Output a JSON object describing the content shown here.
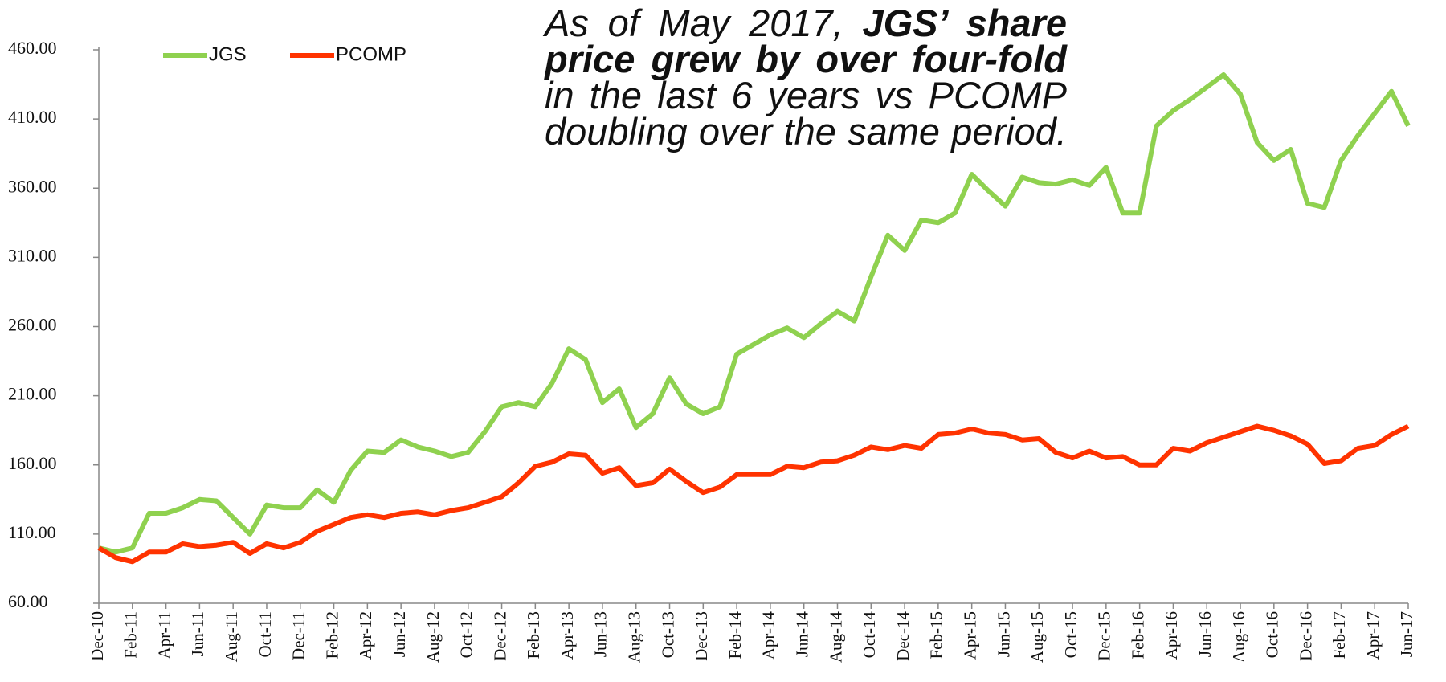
{
  "chart_data": {
    "type": "line",
    "annotation": [
      [
        {
          "text": "As of May 2017, ",
          "bold": false
        },
        {
          "text": "JGS’ share",
          "bold": true
        }
      ],
      [
        {
          "text": "price grew by over four-fold",
          "bold": true
        }
      ],
      [
        {
          "text": "in the last 6 years vs PCOMP",
          "bold": false
        }
      ],
      [
        {
          "text": "doubling over the same period.",
          "bold": false
        }
      ]
    ],
    "categories": [
      "Dec-10",
      null,
      "Feb-11",
      null,
      "Apr-11",
      null,
      "Jun-11",
      null,
      "Aug-11",
      null,
      "Oct-11",
      null,
      "Dec-11",
      null,
      "Feb-12",
      null,
      "Apr-12",
      null,
      "Jun-12",
      null,
      "Aug-12",
      null,
      "Oct-12",
      null,
      "Dec-12",
      null,
      "Feb-13",
      null,
      "Apr-13",
      null,
      "Jun-13",
      null,
      "Aug-13",
      null,
      "Oct-13",
      null,
      "Dec-13",
      null,
      "Feb-14",
      null,
      "Apr-14",
      null,
      "Jun-14",
      null,
      "Aug-14",
      null,
      "Oct-14",
      null,
      "Dec-14",
      null,
      "Feb-15",
      null,
      "Apr-15",
      null,
      "Jun-15",
      null,
      "Aug-15",
      null,
      "Oct-15",
      null,
      "Dec-15",
      null,
      "Feb-16",
      null,
      "Apr-16",
      null,
      "Jun-16",
      null,
      "Aug-16",
      null,
      "Oct-16",
      null,
      "Dec-16",
      null,
      "Feb-17",
      null,
      "Apr-17",
      null,
      "Jun-17"
    ],
    "series": [
      {
        "name": "JGS",
        "color": "#8fd14f",
        "values": [
          100,
          97,
          100,
          125,
          125,
          129,
          135,
          134,
          122,
          110,
          131,
          129,
          129,
          142,
          133,
          156,
          170,
          169,
          178,
          173,
          170,
          166,
          169,
          184,
          202,
          205,
          202,
          219,
          244,
          236,
          205,
          215,
          187,
          197,
          223,
          204,
          197,
          202,
          240,
          247,
          254,
          259,
          252,
          262,
          271,
          264,
          296,
          326,
          315,
          337,
          335,
          342,
          370,
          358,
          347,
          368,
          364,
          363,
          366,
          362,
          375,
          342,
          342,
          405,
          416,
          424,
          433,
          442,
          428,
          393,
          380,
          388,
          349,
          346,
          380,
          398,
          414,
          430,
          405
        ]
      },
      {
        "name": "PCOMP",
        "color": "#ff3300",
        "values": [
          100,
          93,
          90,
          97,
          97,
          103,
          101,
          102,
          104,
          96,
          103,
          100,
          104,
          112,
          117,
          122,
          124,
          122,
          125,
          126,
          124,
          127,
          129,
          133,
          137,
          147,
          159,
          162,
          168,
          167,
          154,
          158,
          145,
          147,
          157,
          148,
          140,
          144,
          153,
          153,
          153,
          159,
          158,
          162,
          163,
          167,
          173,
          171,
          174,
          172,
          182,
          183,
          186,
          183,
          182,
          178,
          179,
          169,
          165,
          170,
          165,
          166,
          160,
          160,
          172,
          170,
          176,
          180,
          184,
          188,
          185,
          181,
          175,
          161,
          163,
          172,
          174,
          182,
          188
        ]
      }
    ],
    "ylim": [
      60,
      460
    ],
    "yticks": [
      {
        "value": 60,
        "label": "60.00"
      },
      {
        "value": 110,
        "label": "110.00"
      },
      {
        "value": 160,
        "label": "160.00"
      },
      {
        "value": 210,
        "label": "210.00"
      },
      {
        "value": 260,
        "label": "260.00"
      },
      {
        "value": 310,
        "label": "310.00"
      },
      {
        "value": 360,
        "label": "360.00"
      },
      {
        "value": 410,
        "label": "410.00"
      },
      {
        "value": 460,
        "label": "460.00"
      }
    ],
    "grid": false,
    "legend": "top-left"
  }
}
